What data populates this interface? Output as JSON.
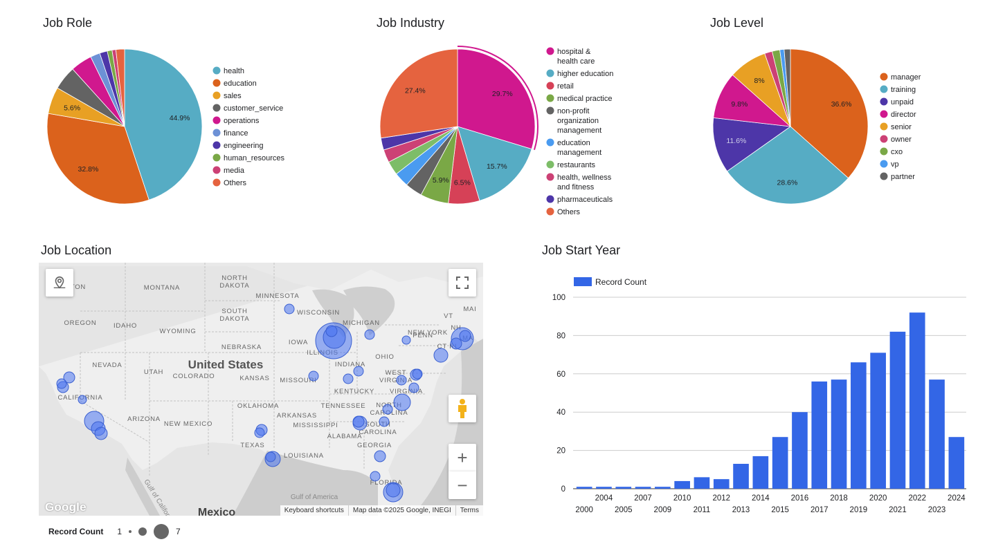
{
  "titles": {
    "job_role": "Job Role",
    "job_industry": "Job Industry",
    "job_level": "Job Level",
    "job_location": "Job Location",
    "job_start_year": "Job Start Year"
  },
  "colors": {
    "bar": "#3366e6",
    "bubble": "#4a74f0",
    "grid": "#cccccc"
  },
  "chart_data": [
    {
      "id": "job_role",
      "type": "pie",
      "title": "Job Role",
      "slices": [
        {
          "label": "health",
          "value": 44.9,
          "shown": "44.9%",
          "color": "#56acc4"
        },
        {
          "label": "education",
          "value": 32.8,
          "shown": "32.8%",
          "color": "#db621c"
        },
        {
          "label": "sales",
          "value": 5.6,
          "shown": "5.6%",
          "color": "#e8a024"
        },
        {
          "label": "customer_service",
          "value": 5.0,
          "shown": "",
          "color": "#636363"
        },
        {
          "label": "operations",
          "value": 4.5,
          "shown": "",
          "color": "#d0188e"
        },
        {
          "label": "finance",
          "value": 2.0,
          "shown": "",
          "color": "#6d91d6"
        },
        {
          "label": "engineering",
          "value": 1.6,
          "shown": "",
          "color": "#4d36a8"
        },
        {
          "label": "human_resources",
          "value": 1.0,
          "shown": "",
          "color": "#7aa846"
        },
        {
          "label": "media",
          "value": 0.8,
          "shown": "",
          "color": "#cc4175"
        },
        {
          "label": "Others",
          "value": 1.8,
          "shown": "",
          "color": "#e5633f"
        }
      ]
    },
    {
      "id": "job_industry",
      "type": "pie",
      "title": "Job Industry",
      "slices": [
        {
          "label": "hospital & health care",
          "value": 29.7,
          "shown": "29.7%",
          "color": "#d0188e"
        },
        {
          "label": "higher education",
          "value": 15.7,
          "shown": "15.7%",
          "color": "#56acc4"
        },
        {
          "label": "retail",
          "value": 6.5,
          "shown": "6.5%",
          "color": "#d64157"
        },
        {
          "label": "medical practice",
          "value": 5.9,
          "shown": "5.9%",
          "color": "#7aa846"
        },
        {
          "label": "non-profit organization management",
          "value": 3.6,
          "shown": "",
          "color": "#636363"
        },
        {
          "label": "education management",
          "value": 3.1,
          "shown": "",
          "color": "#4a9bf0"
        },
        {
          "label": "restaurants",
          "value": 2.9,
          "shown": "",
          "color": "#7dbd68"
        },
        {
          "label": "health, wellness and fitness",
          "value": 2.7,
          "shown": "",
          "color": "#cc4175"
        },
        {
          "label": "pharmaceuticals",
          "value": 2.5,
          "shown": "",
          "color": "#4d36a8"
        },
        {
          "label": "Others",
          "value": 27.4,
          "shown": "27.4%",
          "color": "#e5633f"
        }
      ]
    },
    {
      "id": "job_level",
      "type": "pie",
      "title": "Job Level",
      "slices": [
        {
          "label": "manager",
          "value": 36.6,
          "shown": "36.6%",
          "color": "#db621c"
        },
        {
          "label": "training",
          "value": 28.6,
          "shown": "28.6%",
          "color": "#56acc4"
        },
        {
          "label": "unpaid",
          "value": 11.6,
          "shown": "11.6%",
          "color": "#4d36a8"
        },
        {
          "label": "director",
          "value": 9.8,
          "shown": "9.8%",
          "color": "#d0188e"
        },
        {
          "label": "senior",
          "value": 8.0,
          "shown": "8%",
          "color": "#e8a024"
        },
        {
          "label": "owner",
          "value": 1.6,
          "shown": "",
          "color": "#cc4175"
        },
        {
          "label": "cxo",
          "value": 1.6,
          "shown": "",
          "color": "#7aa846"
        },
        {
          "label": "vp",
          "value": 0.9,
          "shown": "",
          "color": "#4a9bf0"
        },
        {
          "label": "partner",
          "value": 1.3,
          "shown": "",
          "color": "#636363"
        }
      ]
    },
    {
      "id": "job_start_year",
      "type": "bar",
      "title": "Job Start Year",
      "legend": "Record Count",
      "ylim": [
        0,
        100
      ],
      "yticks": [
        0,
        20,
        40,
        60,
        80,
        100
      ],
      "categories": [
        "2000",
        "2004",
        "2005",
        "2007",
        "2009",
        "2010",
        "2011",
        "2012",
        "2013",
        "2014",
        "2015",
        "2016",
        "2017",
        "2018",
        "2019",
        "2020",
        "2021",
        "2022",
        "2023",
        "2024"
      ],
      "values": [
        1,
        1,
        1,
        1,
        1,
        4,
        6,
        5,
        13,
        17,
        27,
        40,
        56,
        57,
        66,
        71,
        82,
        92,
        57,
        27
      ]
    }
  ],
  "map": {
    "labels": {
      "montana": "MONTANA",
      "north_dakota": "NORTH DAKOTA",
      "minnesota": "MINNESOTA",
      "wisconsin": "WISCONSIN",
      "michigan": "MICHIGAN",
      "oregon": "OREGON",
      "idaho": "IDAHO",
      "wyoming": "WYOMING",
      "south_dakota": "SOUTH DAKOTA",
      "iowa": "IOWA",
      "nebraska": "NEBRASKA",
      "illinois": "ILLINOIS",
      "indiana": "INDIANA",
      "ohio": "OHIO",
      "penn": "PENN",
      "new_york": "NEW YORK",
      "nevada": "NEVADA",
      "utah": "UTAH",
      "colorado": "COLORADO",
      "kansas": "KANSAS",
      "missouri": "MISSOURI",
      "kentucky": "KENTUCKY",
      "west_virginia": "WEST VIRGINIA",
      "virginia": "VIRGINIA",
      "california": "CALIFORNIA",
      "arizona": "ARIZONA",
      "new_mexico": "NEW MEXICO",
      "oklahoma": "OKLAHOMA",
      "arkansas": "ARKANSAS",
      "tennessee": "TENNESSEE",
      "north_carolina": "NORTH CAROLINA",
      "mississippi": "MISSISSIPPI",
      "alabama": "ALABAMA",
      "south_carolina": "SOUTH CAROLINA",
      "georgia": "GEORGIA",
      "texas": "TEXAS",
      "louisiana": "LOUISIANA",
      "florida": "FLORIDA",
      "united_states": "United States",
      "mexico": "Mexico",
      "gulf_of_mexico": "Gulf of America",
      "gulf_of_california": "Gulf of California",
      "washington_partial": "NGTON",
      "vt": "VT",
      "nh": "NH",
      "ma": "MA",
      "ct_ri": "CT RI",
      "maine_partial": "MAI"
    },
    "google_logo": "Google",
    "attribution": {
      "shortcuts": "Keyboard shortcuts",
      "data": "Map data ©2025 Google, INEGI",
      "terms": "Terms"
    },
    "controls": {
      "locate_icon": "location-pin-icon",
      "fullscreen_icon": "fullscreen-icon",
      "pegman_icon": "pegman-icon",
      "zoom_in": "+",
      "zoom_out": "−"
    },
    "size_legend": {
      "label": "Record Count",
      "min": "1",
      "max": "7"
    }
  }
}
